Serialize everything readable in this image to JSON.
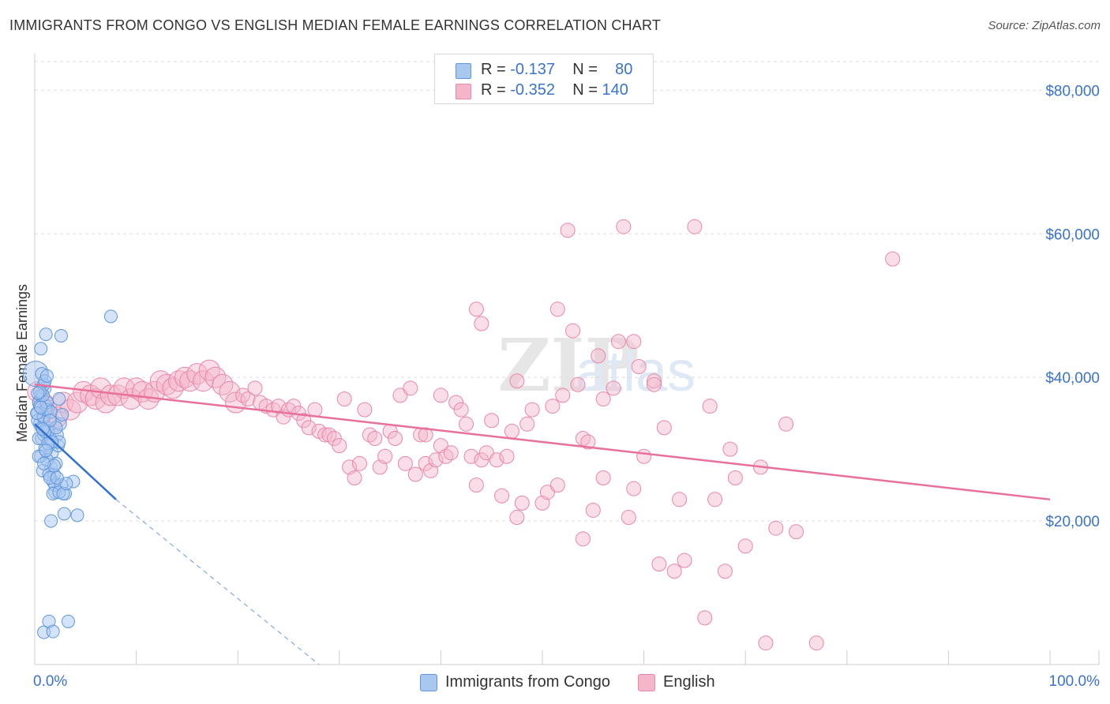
{
  "header": {
    "title": "IMMIGRANTS FROM CONGO VS ENGLISH MEDIAN FEMALE EARNINGS CORRELATION CHART",
    "source": "Source: ZipAtlas.com"
  },
  "legend": {
    "rows": [
      {
        "r_label": "R =",
        "r_value": "-0.137",
        "n_label": "N =",
        "n_value": "80"
      },
      {
        "r_label": "R =",
        "r_value": "-0.352",
        "n_label": "N =",
        "n_value": "140"
      }
    ]
  },
  "bottom_legend": [
    "Immigrants from Congo",
    "English"
  ],
  "watermark": "ZIPatlas",
  "colors": {
    "congo_fill": "#a9c8f0",
    "congo_stroke": "#5f96dd",
    "congo_line": "#3070d0",
    "english_fill": "#f5b6c9",
    "english_stroke": "#e987a6",
    "english_line": "#e8709a",
    "tick_label": "#3b73c9",
    "grid": "#dddddd"
  },
  "chart_data": {
    "type": "scatter",
    "title": "IMMIGRANTS FROM CONGO VS ENGLISH MEDIAN FEMALE EARNINGS CORRELATION CHART",
    "xlabel": "",
    "ylabel": "Median Female Earnings",
    "xlim": [
      0,
      100
    ],
    "ylim": [
      0,
      84000
    ],
    "x_tick_labels": [
      "0.0%",
      "100.0%"
    ],
    "y_ticks": [
      20000,
      40000,
      60000,
      80000
    ],
    "y_tick_labels": [
      "$20,000",
      "$40,000",
      "$60,000",
      "$80,000"
    ],
    "grid": true,
    "series": [
      {
        "name": "Immigrants from Congo",
        "r": -0.137,
        "n": 80,
        "trend": {
          "x0": 0,
          "y0": 33500,
          "x1": 8,
          "y1": 23000,
          "dashed_to_x": 28,
          "dashed_to_y": 0
        },
        "points": [
          [
            0.1,
            40500
          ],
          [
            0.3,
            35000
          ],
          [
            0.4,
            36500
          ],
          [
            0.5,
            33500
          ],
          [
            0.6,
            37500
          ],
          [
            0.7,
            31500
          ],
          [
            0.8,
            34500
          ],
          [
            0.9,
            32000
          ],
          [
            1.0,
            38500
          ],
          [
            1.1,
            36000
          ],
          [
            1.2,
            33000
          ],
          [
            1.3,
            35500
          ],
          [
            1.4,
            30500
          ],
          [
            1.5,
            31500
          ],
          [
            1.6,
            27500
          ],
          [
            1.7,
            29500
          ],
          [
            1.8,
            25500
          ],
          [
            1.9,
            26500
          ],
          [
            2.0,
            24000
          ],
          [
            2.1,
            28000
          ],
          [
            2.2,
            32000
          ],
          [
            2.3,
            30500
          ],
          [
            2.4,
            31000
          ],
          [
            2.5,
            33500
          ],
          [
            0.3,
            34000
          ],
          [
            0.5,
            36000
          ],
          [
            0.7,
            33000
          ],
          [
            0.9,
            34500
          ],
          [
            1.1,
            35500
          ],
          [
            1.3,
            32500
          ],
          [
            0.4,
            31500
          ],
          [
            0.6,
            29000
          ],
          [
            0.8,
            27000
          ],
          [
            1.0,
            30000
          ],
          [
            1.2,
            28500
          ],
          [
            1.4,
            26500
          ],
          [
            0.6,
            44000
          ],
          [
            1.1,
            46000
          ],
          [
            2.6,
            45800
          ],
          [
            7.5,
            48500
          ],
          [
            0.9,
            39000
          ],
          [
            0.7,
            40500
          ],
          [
            2.0,
            25000
          ],
          [
            2.6,
            25000
          ],
          [
            3.0,
            23800
          ],
          [
            3.8,
            25500
          ],
          [
            1.6,
            20000
          ],
          [
            2.9,
            21000
          ],
          [
            4.2,
            20800
          ],
          [
            1.8,
            23800
          ],
          [
            2.4,
            24000
          ],
          [
            1.5,
            26000
          ],
          [
            1.2,
            36500
          ],
          [
            0.8,
            37500
          ],
          [
            1.0,
            32500
          ],
          [
            2.8,
            23800
          ],
          [
            3.1,
            25200
          ],
          [
            1.9,
            27700
          ],
          [
            2.2,
            26000
          ],
          [
            0.5,
            38000
          ],
          [
            0.9,
            4500
          ],
          [
            1.4,
            6000
          ],
          [
            1.8,
            4600
          ],
          [
            3.3,
            6000
          ],
          [
            0.4,
            29000
          ],
          [
            1.7,
            31000
          ],
          [
            1.3,
            30800
          ],
          [
            0.2,
            35000
          ],
          [
            2.1,
            33000
          ],
          [
            1.6,
            35200
          ],
          [
            0.3,
            37800
          ],
          [
            1.0,
            39500
          ],
          [
            1.2,
            40200
          ],
          [
            2.4,
            37000
          ],
          [
            0.6,
            35800
          ],
          [
            1.5,
            34000
          ],
          [
            2.7,
            34800
          ],
          [
            0.8,
            32800
          ],
          [
            1.1,
            29800
          ],
          [
            0.9,
            28000
          ]
        ]
      },
      {
        "name": "English",
        "r": -0.352,
        "n": 140,
        "trend": {
          "x0": 0,
          "y0": 39000,
          "x1": 100,
          "y1": 23000
        },
        "points": [
          [
            0.3,
            38000
          ],
          [
            0.8,
            36500
          ],
          [
            1.2,
            35500
          ],
          [
            1.6,
            33500
          ],
          [
            2.2,
            34500
          ],
          [
            2.8,
            36500
          ],
          [
            3.5,
            35500
          ],
          [
            4.2,
            36500
          ],
          [
            4.8,
            38000
          ],
          [
            5.5,
            37500
          ],
          [
            6.0,
            37000
          ],
          [
            6.5,
            38500
          ],
          [
            7.0,
            36500
          ],
          [
            7.5,
            37500
          ],
          [
            8.2,
            37500
          ],
          [
            8.8,
            38500
          ],
          [
            9.5,
            37000
          ],
          [
            10.0,
            38500
          ],
          [
            10.6,
            38000
          ],
          [
            11.2,
            37000
          ],
          [
            11.8,
            38000
          ],
          [
            12.4,
            39500
          ],
          [
            13.0,
            39000
          ],
          [
            13.6,
            38500
          ],
          [
            14.2,
            39500
          ],
          [
            14.8,
            40000
          ],
          [
            15.3,
            39500
          ],
          [
            16.0,
            40500
          ],
          [
            16.6,
            39500
          ],
          [
            17.2,
            41000
          ],
          [
            17.8,
            40000
          ],
          [
            18.5,
            39000
          ],
          [
            19.2,
            38000
          ],
          [
            19.8,
            36500
          ],
          [
            20.5,
            37500
          ],
          [
            21.0,
            37000
          ],
          [
            21.7,
            38500
          ],
          [
            22.2,
            36500
          ],
          [
            22.8,
            36000
          ],
          [
            23.5,
            35500
          ],
          [
            24.0,
            36000
          ],
          [
            24.5,
            34500
          ],
          [
            25.0,
            35500
          ],
          [
            25.5,
            36000
          ],
          [
            26.0,
            35000
          ],
          [
            26.5,
            34000
          ],
          [
            27.0,
            33000
          ],
          [
            27.6,
            35500
          ],
          [
            28.0,
            32500
          ],
          [
            28.6,
            32000
          ],
          [
            29.0,
            32000
          ],
          [
            29.5,
            31500
          ],
          [
            30.0,
            30500
          ],
          [
            30.5,
            37000
          ],
          [
            31.0,
            27500
          ],
          [
            31.5,
            26000
          ],
          [
            32.0,
            28000
          ],
          [
            32.5,
            35500
          ],
          [
            33.0,
            32000
          ],
          [
            33.5,
            31500
          ],
          [
            34.0,
            27500
          ],
          [
            34.5,
            29000
          ],
          [
            35.0,
            32500
          ],
          [
            35.5,
            31500
          ],
          [
            36.0,
            37500
          ],
          [
            36.5,
            28000
          ],
          [
            37.0,
            38500
          ],
          [
            37.5,
            26500
          ],
          [
            38.0,
            32000
          ],
          [
            38.5,
            28000
          ],
          [
            39.0,
            27000
          ],
          [
            39.5,
            28500
          ],
          [
            40.0,
            30500
          ],
          [
            40.5,
            29000
          ],
          [
            41.0,
            29500
          ],
          [
            41.5,
            36500
          ],
          [
            42.0,
            35500
          ],
          [
            42.5,
            33500
          ],
          [
            43.0,
            29000
          ],
          [
            43.5,
            25000
          ],
          [
            44.0,
            28500
          ],
          [
            44.5,
            29500
          ],
          [
            45.0,
            34000
          ],
          [
            45.5,
            28500
          ],
          [
            46.0,
            23500
          ],
          [
            46.5,
            29000
          ],
          [
            47.0,
            32500
          ],
          [
            47.5,
            20500
          ],
          [
            48.0,
            22500
          ],
          [
            48.5,
            33500
          ],
          [
            49.0,
            35500
          ],
          [
            50.0,
            22500
          ],
          [
            50.5,
            24000
          ],
          [
            51.5,
            25000
          ],
          [
            52.0,
            37500
          ],
          [
            53.5,
            39000
          ],
          [
            54.0,
            31500
          ],
          [
            54.5,
            31000
          ],
          [
            55.0,
            21500
          ],
          [
            56.0,
            26000
          ],
          [
            57.0,
            38500
          ],
          [
            58.5,
            20500
          ],
          [
            59.0,
            45000
          ],
          [
            60.0,
            29000
          ],
          [
            61.0,
            39500
          ],
          [
            62.0,
            33000
          ],
          [
            63.0,
            13000
          ],
          [
            64.0,
            14500
          ],
          [
            66.0,
            6500
          ],
          [
            67.0,
            23000
          ],
          [
            68.0,
            13000
          ],
          [
            69.0,
            26000
          ],
          [
            70.0,
            16500
          ],
          [
            72.0,
            3000
          ],
          [
            73.0,
            19000
          ],
          [
            75.0,
            18500
          ],
          [
            77.0,
            3000
          ],
          [
            51.5,
            49500
          ],
          [
            53.0,
            46500
          ],
          [
            55.5,
            43000
          ],
          [
            57.5,
            45000
          ],
          [
            59.5,
            41500
          ],
          [
            61.0,
            39000
          ],
          [
            56.0,
            37000
          ],
          [
            51.0,
            36000
          ],
          [
            47.5,
            39500
          ],
          [
            43.5,
            49500
          ],
          [
            44.0,
            47500
          ],
          [
            40.0,
            37500
          ],
          [
            52.5,
            60500
          ],
          [
            65.0,
            61000
          ],
          [
            58.0,
            61000
          ],
          [
            84.5,
            56500
          ],
          [
            59.0,
            24500
          ],
          [
            38.5,
            32000
          ],
          [
            54.0,
            17500
          ],
          [
            61.5,
            14000
          ],
          [
            63.5,
            23000
          ],
          [
            66.5,
            36000
          ],
          [
            68.5,
            30000
          ],
          [
            71.5,
            27500
          ],
          [
            74.0,
            33500
          ]
        ]
      }
    ]
  }
}
